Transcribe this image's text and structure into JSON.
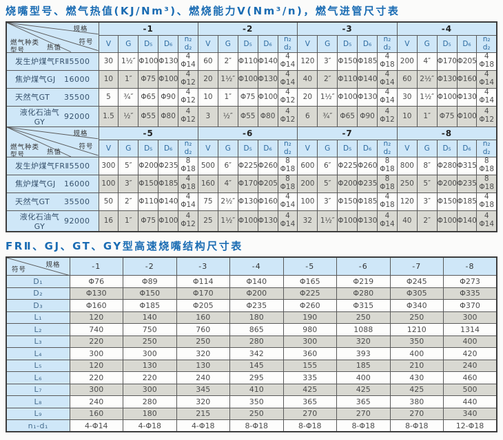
{
  "page": {
    "title1": "烧嘴型号、燃气热值(KJ/Nm³)、燃烧能力V(Nm³/n)，燃气进管尺寸表",
    "title2": "FRⅡ、GJ、GT、GY型高速烧嘴结构尺寸表"
  },
  "corner1": {
    "spec": "规格",
    "symbol": "符号",
    "gas_type": "燃气种类",
    "model": "型号",
    "heat": "热值"
  },
  "corner2": {
    "spec": "规格",
    "symbol": "符号"
  },
  "table1": {
    "subheaders": [
      "V",
      "G",
      "D₅",
      "D₆",
      "n₂\nd₂"
    ],
    "sections": [
      {
        "specs": [
          "-1",
          "-2",
          "-3",
          "-4"
        ],
        "rows": [
          {
            "name": "发生炉煤气FRⅡ",
            "heat": "5500",
            "cells": [
              "30",
              "1½″",
              "Φ100",
              "Φ130",
              "4\nΦ14",
              "60",
              "2″",
              "Φ110",
              "Φ140",
              "4\nΦ14",
              "120",
              "3″",
              "Φ150",
              "Φ185",
              "4\nΦ18",
              "200",
              "4″",
              "Φ170",
              "Φ205",
              "4\nΦ18"
            ]
          },
          {
            "name": "焦炉煤气GJ",
            "heat": "16000",
            "cells": [
              "10",
              "1″",
              "Φ75",
              "Φ100",
              "4\nΦ12",
              "20",
              "1½″",
              "Φ100",
              "Φ130",
              "4\nΦ14",
              "40",
              "2″",
              "Φ110",
              "Φ140",
              "4\nΦ14",
              "60",
              "2½″",
              "Φ130",
              "Φ160",
              "4\nΦ14"
            ]
          },
          {
            "name": "天然气GT",
            "heat": "35500",
            "cells": [
              "5",
              "¾″",
              "Φ65",
              "Φ90",
              "4\nΦ12",
              "10",
              "1″",
              "Φ75",
              "Φ100",
              "4\nΦ12",
              "20",
              "1½″",
              "Φ100",
              "Φ130",
              "4\nΦ14",
              "30",
              "1½″",
              "Φ100",
              "Φ130",
              "4\nΦ14"
            ]
          },
          {
            "name": "液化石油气GY",
            "heat": "92000",
            "cells": [
              "1.5",
              "½″",
              "Φ55",
              "Φ80",
              "4\nΦ12",
              "3",
              "½″",
              "Φ55",
              "Φ80",
              "4\nΦ12",
              "6",
              "¾″",
              "Φ65",
              "Φ90",
              "4\nΦ12",
              "10",
              "1″",
              "Φ75",
              "Φ100",
              "4\nΦ12"
            ]
          }
        ]
      },
      {
        "specs": [
          "-5",
          "-6",
          "-7",
          "-8"
        ],
        "rows": [
          {
            "name": "发生炉煤气FRⅡ",
            "heat": "5500",
            "cells": [
              "300",
              "5″",
              "Φ200",
              "Φ235",
              "8\nΦ18",
              "500",
              "6″",
              "Φ225",
              "Φ260",
              "8\nΦ18",
              "600",
              "6″",
              "Φ225",
              "Φ260",
              "8\nΦ18",
              "800",
              "8″",
              "Φ280",
              "Φ315",
              "8\nΦ18"
            ]
          },
          {
            "name": "焦炉煤气GJ",
            "heat": "16000",
            "cells": [
              "100",
              "3″",
              "Φ150",
              "Φ185",
              "4\nΦ18",
              "160",
              "4″",
              "Φ170",
              "Φ205",
              "8\nΦ18",
              "200",
              "5″",
              "Φ200",
              "Φ235",
              "8\nΦ18",
              "250",
              "5″",
              "Φ200",
              "Φ235",
              "8\nΦ18"
            ]
          },
          {
            "name": "天然气GT",
            "heat": "35500",
            "cells": [
              "50",
              "2″",
              "Φ110",
              "Φ140",
              "4\nΦ14",
              "75",
              "2½″",
              "Φ130",
              "Φ160",
              "4\nΦ14",
              "100",
              "3″",
              "Φ150",
              "Φ185",
              "4\nΦ18",
              "120",
              "3″",
              "Φ150",
              "Φ185",
              "4\nΦ18"
            ]
          },
          {
            "name": "液化石油气GY",
            "heat": "92000",
            "cells": [
              "16",
              "1″",
              "Φ75",
              "Φ100",
              "4\nΦ12",
              "25",
              "1½″",
              "Φ100",
              "Φ130",
              "4\nΦ14",
              "32",
              "1½″",
              "Φ100",
              "Φ130",
              "4\nΦ14",
              "40",
              "2″",
              "Φ100",
              "Φ140",
              "4\nΦ14"
            ]
          }
        ]
      }
    ]
  },
  "table2": {
    "columns": [
      "-1",
      "-2",
      "-3",
      "-4",
      "-5",
      "-6",
      "-7",
      "-8"
    ],
    "rows": [
      {
        "label": "D₁",
        "values": [
          "Φ76",
          "Φ89",
          "Φ114",
          "Φ140",
          "Φ165",
          "Φ219",
          "Φ245",
          "Φ273"
        ]
      },
      {
        "label": "D₂",
        "values": [
          "Φ130",
          "Φ150",
          "Φ170",
          "Φ200",
          "Φ225",
          "Φ280",
          "Φ305",
          "Φ335"
        ]
      },
      {
        "label": "D₃",
        "values": [
          "Φ160",
          "Φ185",
          "Φ205",
          "Φ235",
          "Φ260",
          "Φ315",
          "Φ340",
          "Φ370"
        ]
      },
      {
        "label": "L₁",
        "values": [
          "120",
          "140",
          "160",
          "180",
          "190",
          "250",
          "250",
          "300"
        ]
      },
      {
        "label": "L₂",
        "values": [
          "740",
          "750",
          "760",
          "865",
          "980",
          "1088",
          "1210",
          "1314"
        ]
      },
      {
        "label": "L₃",
        "values": [
          "220",
          "250",
          "250",
          "280",
          "300",
          "320",
          "350",
          "400"
        ]
      },
      {
        "label": "L₄",
        "values": [
          "300",
          "300",
          "320",
          "342",
          "360",
          "393",
          "400",
          "420"
        ]
      },
      {
        "label": "L₅",
        "values": [
          "120",
          "130",
          "130",
          "145",
          "155",
          "185",
          "210",
          "240"
        ]
      },
      {
        "label": "L₆",
        "values": [
          "220",
          "220",
          "240",
          "295",
          "335",
          "400",
          "430",
          "460"
        ]
      },
      {
        "label": "L₇",
        "values": [
          "300",
          "300",
          "345",
          "410",
          "425",
          "425",
          "425",
          "500"
        ]
      },
      {
        "label": "L₈",
        "values": [
          "240",
          "280",
          "320",
          "350",
          "365",
          "365",
          "380",
          "440"
        ]
      },
      {
        "label": "L₉",
        "values": [
          "160",
          "180",
          "215",
          "250",
          "270",
          "270",
          "270",
          "340"
        ]
      },
      {
        "label": "n₁-d₁",
        "values": [
          "4-Φ14",
          "4-Φ18",
          "4-Φ18",
          "8-Φ18",
          "8-Φ18",
          "8-Φ18",
          "8-Φ18",
          "12-Φ18"
        ]
      }
    ]
  },
  "colors": {
    "title_blue": "#1a6cb3",
    "header_bg": "#cfe7f8",
    "row_gray": "#d9d9d2",
    "row_white": "#fdfdfc",
    "border": "#585858"
  }
}
